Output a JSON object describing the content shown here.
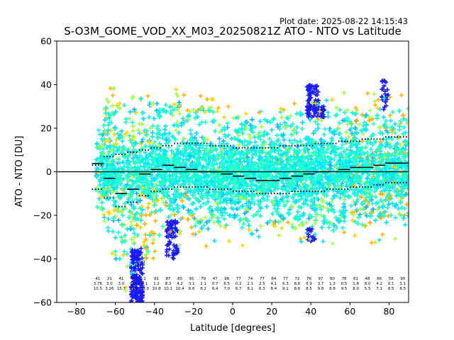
{
  "plot_date": "Plot date: 2025-08-22 14:15:43",
  "chart_data": {
    "type": "scatter",
    "title": "S-O3M_GOME_VOD_XX_M03_20250821Z ATO - NTO vs Latitude",
    "xlabel": "Latitude [degrees]",
    "ylabel": "ATO - NTO [DU]",
    "xlim": [
      -90,
      90
    ],
    "ylim": [
      -60,
      60
    ],
    "xticks": [
      -80,
      -60,
      -40,
      -20,
      0,
      20,
      40,
      60,
      80
    ],
    "yticks": [
      -60,
      -40,
      -20,
      0,
      20,
      40,
      60
    ],
    "grid": false,
    "zero_line": 0,
    "marker": "+",
    "colors": {
      "cyan": "#00e5ff",
      "aquamarine": "#1effd0",
      "lime": "#a8ff4f",
      "yellow": "#ffd600",
      "orange": "#ffb300",
      "blue": "#1a1aff",
      "skyblue": "#14b4ff"
    },
    "envelope": {
      "latitude": [
        -70,
        -65,
        -60,
        -55,
        -50,
        -45,
        -40,
        -35,
        -30,
        -25,
        -20,
        -15,
        -10,
        -5,
        0,
        5,
        10,
        15,
        20,
        25,
        30,
        35,
        40,
        45,
        50,
        55,
        60,
        65,
        70,
        75,
        80,
        85,
        90
      ],
      "upper": [
        22,
        28,
        30,
        31,
        30,
        28,
        29,
        30,
        29,
        28,
        27,
        26,
        24,
        22,
        21,
        22,
        23,
        24,
        23,
        24,
        25,
        24,
        23,
        24,
        25,
        27,
        28,
        27,
        26,
        27,
        28,
        27,
        25
      ],
      "lower": [
        -12,
        -20,
        -38,
        -48,
        -44,
        -40,
        -30,
        -28,
        -26,
        -24,
        -22,
        -24,
        -25,
        -26,
        -22,
        -24,
        -25,
        -22,
        -20,
        -22,
        -23,
        -24,
        -25,
        -22,
        -24,
        -23,
        -22,
        -21,
        -23,
        -24,
        -23,
        -22,
        -20
      ]
    },
    "bin_mean": {
      "latitude": [
        -69,
        -63,
        -57,
        -51,
        -45,
        -39,
        -33,
        -27,
        -21,
        -15,
        -9,
        -3,
        3,
        9,
        15,
        21,
        27,
        33,
        39,
        45,
        51,
        57,
        63,
        69,
        75,
        81,
        87
      ],
      "mean": [
        3.8,
        -3,
        -10,
        -8,
        -1,
        1,
        3,
        2,
        1,
        0,
        0,
        -1,
        -2,
        -3,
        -4,
        -4,
        -3,
        -2,
        -1,
        0,
        0,
        1,
        2,
        2,
        3,
        4,
        4
      ]
    },
    "bin_std_low": {
      "latitude": [
        -69,
        -63,
        -57,
        -51,
        -45,
        -39,
        -33,
        -27,
        -21,
        -15,
        -9,
        -3,
        3,
        9,
        15,
        21,
        27,
        33,
        39,
        45,
        51,
        57,
        63,
        69,
        75,
        81,
        87
      ],
      "value": [
        -8,
        -12,
        -16,
        -14,
        -11,
        -9,
        -8,
        -7,
        -7,
        -7,
        -8,
        -8,
        -9,
        -9,
        -10,
        -10,
        -10,
        -9,
        -9,
        -9,
        -8,
        -8,
        -7,
        -7,
        -6,
        -5,
        -5
      ]
    },
    "bin_std_high": {
      "latitude": [
        -69,
        -63,
        -57,
        -51,
        -45,
        -39,
        -33,
        -27,
        -21,
        -15,
        -9,
        -3,
        3,
        9,
        15,
        21,
        27,
        33,
        39,
        45,
        51,
        57,
        63,
        69,
        75,
        81,
        87
      ],
      "value": [
        3,
        7,
        8,
        9,
        10,
        11,
        12,
        13,
        13,
        13,
        12,
        12,
        11,
        11,
        11,
        11,
        12,
        12,
        12,
        13,
        13,
        14,
        14,
        15,
        15,
        16,
        16
      ]
    },
    "bin_stats_labels": [
      {
        "lat": -69,
        "lines": [
          "41",
          "3.76",
          "10.5"
        ]
      },
      {
        "lat": -63,
        "lines": [
          "21",
          "3.0",
          "3.26"
        ]
      },
      {
        "lat": -57,
        "lines": [
          "41",
          "3.0",
          "15.7"
        ]
      },
      {
        "lat": -51,
        "lines": [
          "44",
          "6.2",
          "15.0"
        ]
      },
      {
        "lat": -45,
        "lines": [
          "2",
          "8.1",
          "12.0"
        ]
      },
      {
        "lat": -39,
        "lines": [
          "91",
          "1.2",
          "10.8"
        ]
      },
      {
        "lat": -33,
        "lines": [
          "87",
          "8.3",
          "10.1"
        ]
      },
      {
        "lat": -27,
        "lines": [
          "85",
          "4.2",
          "10.4"
        ]
      },
      {
        "lat": -21,
        "lines": [
          "91",
          "3.1",
          "8.6"
        ]
      },
      {
        "lat": -15,
        "lines": [
          "79",
          "2.1",
          "8.2"
        ]
      },
      {
        "lat": -9,
        "lines": [
          "47",
          "0.7",
          "6.4"
        ]
      },
      {
        "lat": -3,
        "lines": [
          "98",
          "6.5",
          "7.0"
        ]
      },
      {
        "lat": 3,
        "lines": [
          "77",
          "0.2",
          "6.7"
        ]
      },
      {
        "lat": 9,
        "lines": [
          "74",
          "2.1",
          "8.1"
        ]
      },
      {
        "lat": 15,
        "lines": [
          "77",
          "2.5",
          "6.3"
        ]
      },
      {
        "lat": 21,
        "lines": [
          "84",
          "4.1",
          "8.4"
        ]
      },
      {
        "lat": 27,
        "lines": [
          "77",
          "6.3",
          "9.1"
        ]
      },
      {
        "lat": 33,
        "lines": [
          "72",
          "8.6",
          "8.6"
        ]
      },
      {
        "lat": 39,
        "lines": [
          "76",
          "8.9",
          "8.5"
        ]
      },
      {
        "lat": 45,
        "lines": [
          "97",
          "3.7",
          "9.8"
        ]
      },
      {
        "lat": 51,
        "lines": [
          "80",
          "1.3",
          "8.8"
        ]
      },
      {
        "lat": 57,
        "lines": [
          "78",
          "0.5",
          "9.5"
        ]
      },
      {
        "lat": 63,
        "lines": [
          "61",
          "1.8",
          "8.0"
        ]
      },
      {
        "lat": 69,
        "lines": [
          "48",
          "8.0",
          "5.5"
        ]
      },
      {
        "lat": 75,
        "lines": [
          "86",
          "4.2",
          "7.1"
        ]
      },
      {
        "lat": 81,
        "lines": [
          "58",
          "0.1",
          "8.5"
        ]
      },
      {
        "lat": 87,
        "lines": [
          "90",
          "3.1",
          "8.5"
        ]
      }
    ]
  }
}
